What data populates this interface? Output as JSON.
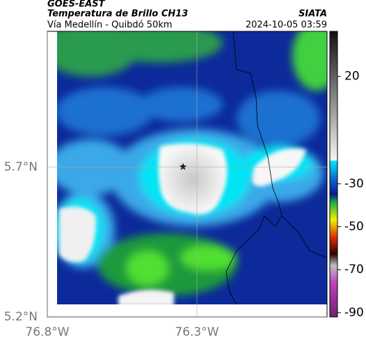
{
  "header": {
    "title": "GOES-EAST",
    "subtitle": "Temperatura de Brillo CH13",
    "source": "SIATA",
    "route": "Vía Medellín - Quibdó 50km",
    "timestamp": "2024-10-05 03:59"
  },
  "map": {
    "xlim": [
      -76.8,
      -75.865
    ],
    "ylim": [
      5.2,
      6.153
    ],
    "xticks": [
      {
        "value": -76.8,
        "label": "76.8°W"
      },
      {
        "value": -76.3,
        "label": "76.3°W"
      }
    ],
    "yticks": [
      {
        "value": 5.2,
        "label": "5.2°N"
      },
      {
        "value": 5.7,
        "label": "5.7°N"
      }
    ],
    "grid": true
  },
  "colorbar": {
    "lim": [
      -92,
      41
    ],
    "ticks": [
      20,
      -30,
      -50,
      -70,
      -90
    ]
  }
}
